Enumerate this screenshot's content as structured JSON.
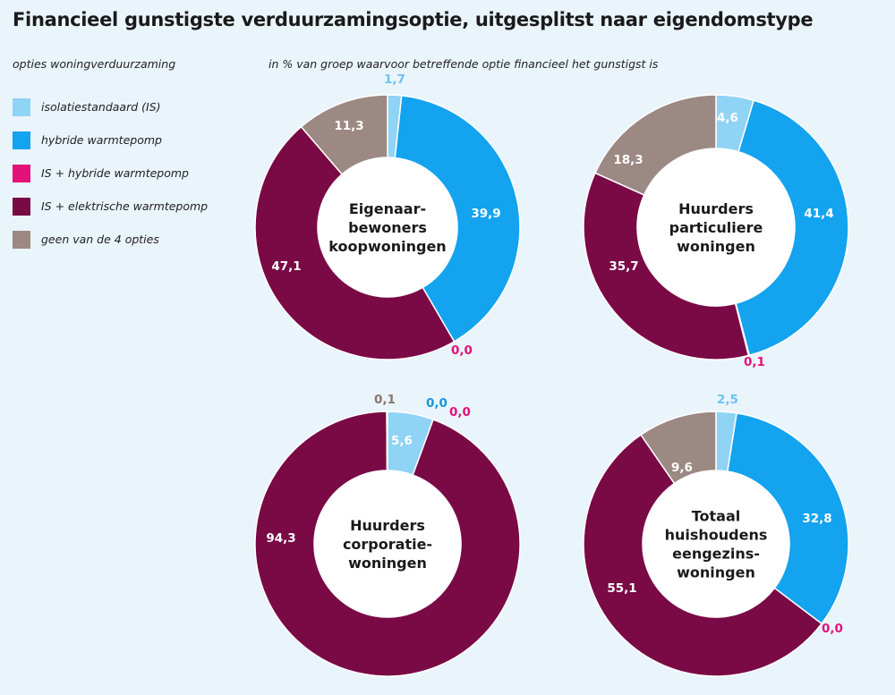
{
  "title": "Financieel gunstigste verduurzamingsoptie, uitgesplitst naar eigendomstype",
  "legend_title": "opties woningverduurzaming",
  "unit_note": "in % van groep waarvoor betreffende optie financieel het gunstigst is",
  "colors": {
    "isolatie": "#8fd3f5",
    "hybride": "#13a3ef",
    "is_hybride": "#e3127a",
    "is_elektrisch": "#7a0a45",
    "geen": "#9c8983"
  },
  "legend": [
    {
      "key": "isolatie",
      "label": "isolatiestandaard (IS)"
    },
    {
      "key": "hybride",
      "label": "hybride warmtepomp"
    },
    {
      "key": "is_hybride",
      "label": "IS + hybride warmtepomp"
    },
    {
      "key": "is_elektrisch",
      "label": "IS + elektrische warmtepomp"
    },
    {
      "key": "geen",
      "label": "geen van de 4 opties"
    }
  ],
  "chart_data": [
    {
      "type": "pie",
      "title": [
        "Eigenaar-",
        "bewoners",
        "koopwoningen"
      ],
      "slices": [
        {
          "key": "isolatie",
          "value": 1.7,
          "label": "1,7"
        },
        {
          "key": "hybride",
          "value": 39.9,
          "label": "39,9"
        },
        {
          "key": "is_hybride",
          "value": 0.0,
          "label": "0,0"
        },
        {
          "key": "is_elektrisch",
          "value": 47.1,
          "label": "47,1"
        },
        {
          "key": "geen",
          "value": 11.3,
          "label": "11,3"
        }
      ]
    },
    {
      "type": "pie",
      "title": [
        "Huurders",
        "particuliere",
        "woningen"
      ],
      "slices": [
        {
          "key": "isolatie",
          "value": 4.6,
          "label": "4,6"
        },
        {
          "key": "hybride",
          "value": 41.4,
          "label": "41,4"
        },
        {
          "key": "is_hybride",
          "value": 0.1,
          "label": "0,1"
        },
        {
          "key": "is_elektrisch",
          "value": 35.7,
          "label": "35,7"
        },
        {
          "key": "geen",
          "value": 18.3,
          "label": "18,3"
        }
      ]
    },
    {
      "type": "pie",
      "title": [
        "Huurders",
        "corporatie-",
        "woningen"
      ],
      "slices": [
        {
          "key": "isolatie",
          "value": 5.6,
          "label": "5,6"
        },
        {
          "key": "hybride",
          "value": 0.0,
          "label": "0,0"
        },
        {
          "key": "is_hybride",
          "value": 0.0,
          "label": "0,0"
        },
        {
          "key": "is_elektrisch",
          "value": 94.3,
          "label": "94,3"
        },
        {
          "key": "geen",
          "value": 0.1,
          "label": "0,1"
        }
      ]
    },
    {
      "type": "pie",
      "title": [
        "Totaal",
        "huishoudens",
        "eengezins-",
        "woningen"
      ],
      "slices": [
        {
          "key": "isolatie",
          "value": 2.5,
          "label": "2,5"
        },
        {
          "key": "hybride",
          "value": 32.8,
          "label": "32,8"
        },
        {
          "key": "is_hybride",
          "value": 0.0,
          "label": "0,0"
        },
        {
          "key": "is_elektrisch",
          "value": 55.1,
          "label": "55,1"
        },
        {
          "key": "geen",
          "value": 9.6,
          "label": "9,6"
        }
      ]
    }
  ]
}
